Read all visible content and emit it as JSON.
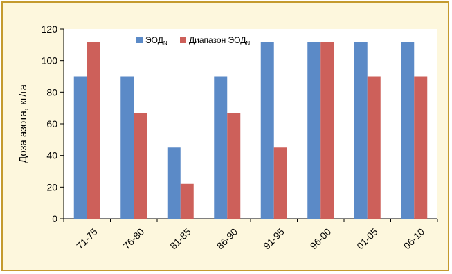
{
  "colors": {
    "frame_background": "#fdf7dd",
    "frame_border": "#c49a2e",
    "plot_background": "#ffffff",
    "series_1": "#5b8ac7",
    "series_2": "#cd605a"
  },
  "chart_data": {
    "type": "bar",
    "categories": [
      "71-75",
      "76-80",
      "81-85",
      "86-90",
      "91-95",
      "96-00",
      "01-05",
      "06-10"
    ],
    "series": [
      {
        "name": "ЭОД",
        "name_sub": "N",
        "values": [
          90,
          90,
          45,
          90,
          112,
          112,
          112,
          112
        ]
      },
      {
        "name": "Диапазон ЭОД",
        "name_sub": "N",
        "values": [
          112,
          67,
          22,
          67,
          45,
          112,
          90,
          90
        ]
      }
    ],
    "title": "",
    "xlabel": "",
    "ylabel": "Доза азота, кг/га",
    "ylim": [
      0,
      120
    ],
    "yticks": [
      0,
      20,
      40,
      60,
      80,
      100,
      120
    ],
    "grid": false,
    "legend_position": "top-center"
  }
}
